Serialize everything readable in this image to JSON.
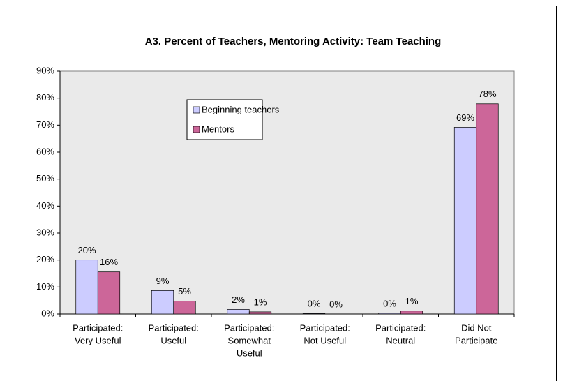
{
  "chart_data": {
    "type": "bar",
    "title": "A3. Percent of Teachers, Mentoring Activity: Team Teaching",
    "categories": [
      [
        "Participated:",
        "Very Useful"
      ],
      [
        "Participated:",
        "Useful"
      ],
      [
        "Participated:",
        "Somewhat",
        "Useful"
      ],
      [
        "Participated:",
        "Not Useful"
      ],
      [
        "Participated:",
        "Neutral"
      ],
      [
        "Did Not",
        "Participate"
      ]
    ],
    "series": [
      {
        "name": "Beginning teachers",
        "color": "#ccccff",
        "values": [
          20,
          8.7,
          1.7,
          0.2,
          0.3,
          69.2
        ],
        "value_labels": [
          "20%",
          "9%",
          "2%",
          "0%",
          "0%",
          "69%"
        ]
      },
      {
        "name": "Mentors",
        "color": "#cc6699",
        "values": [
          15.6,
          4.8,
          0.8,
          0,
          1.1,
          77.9
        ],
        "value_labels": [
          "16%",
          "5%",
          "1%",
          "0%",
          "1%",
          "78%"
        ]
      }
    ],
    "ylim": [
      0,
      90
    ],
    "yticks": [
      {
        "value": 0,
        "label": "0%"
      },
      {
        "value": 10,
        "label": "10%"
      },
      {
        "value": 20,
        "label": "20%"
      },
      {
        "value": 30,
        "label": "30%"
      },
      {
        "value": 40,
        "label": "40%"
      },
      {
        "value": 50,
        "label": "50%"
      },
      {
        "value": 60,
        "label": "60%"
      },
      {
        "value": 70,
        "label": "70%"
      },
      {
        "value": 80,
        "label": "80%"
      },
      {
        "value": 90,
        "label": "90%"
      }
    ]
  }
}
